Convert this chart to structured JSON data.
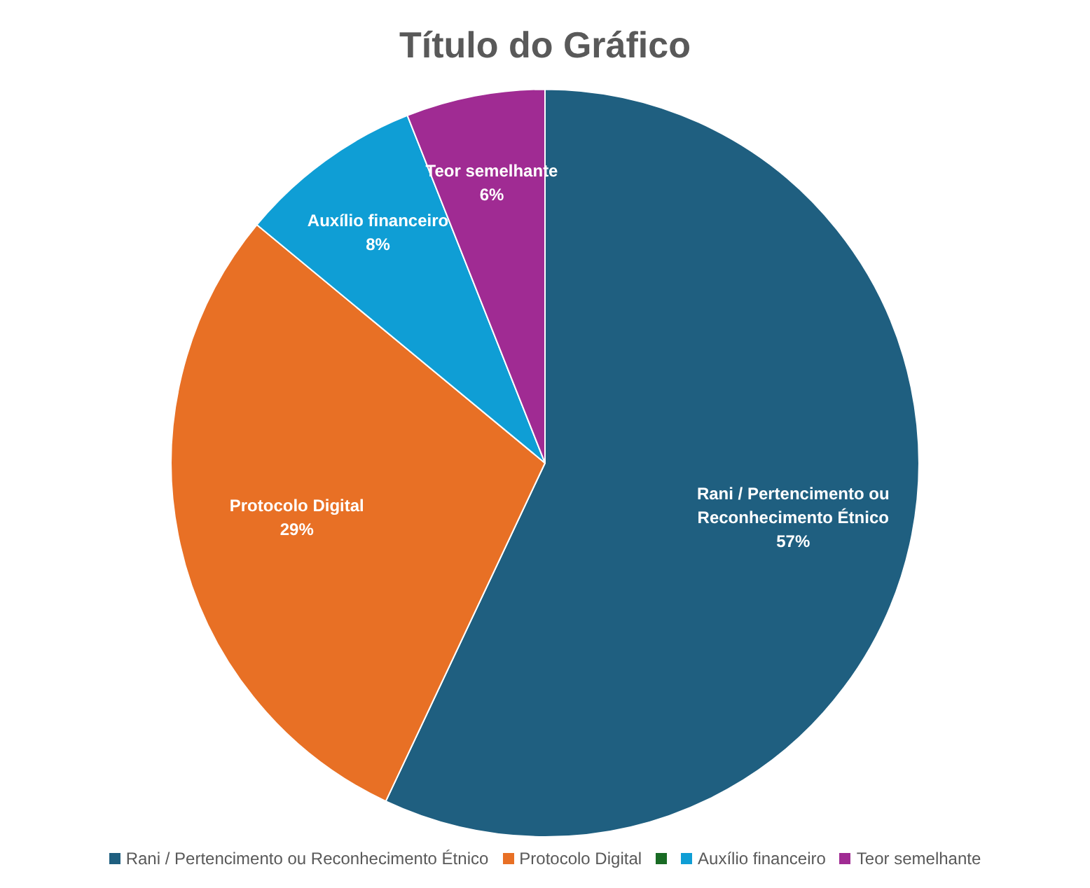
{
  "chart_data": {
    "type": "pie",
    "title": "Título do Gráfico",
    "categories": [
      "Rani / Pertencimento ou Reconhecimento Étnico",
      "Protocolo Digital",
      null,
      "Auxílio financeiro",
      "Teor semelhante"
    ],
    "values": [
      57,
      29,
      0,
      8,
      6
    ],
    "colors": [
      "#1f5f80",
      "#e87025",
      "#196b24",
      "#0f9ed5",
      "#a02b93"
    ],
    "value_labels": [
      "57%",
      "29%",
      null,
      "8%",
      "6%"
    ],
    "legend": "bottom"
  }
}
